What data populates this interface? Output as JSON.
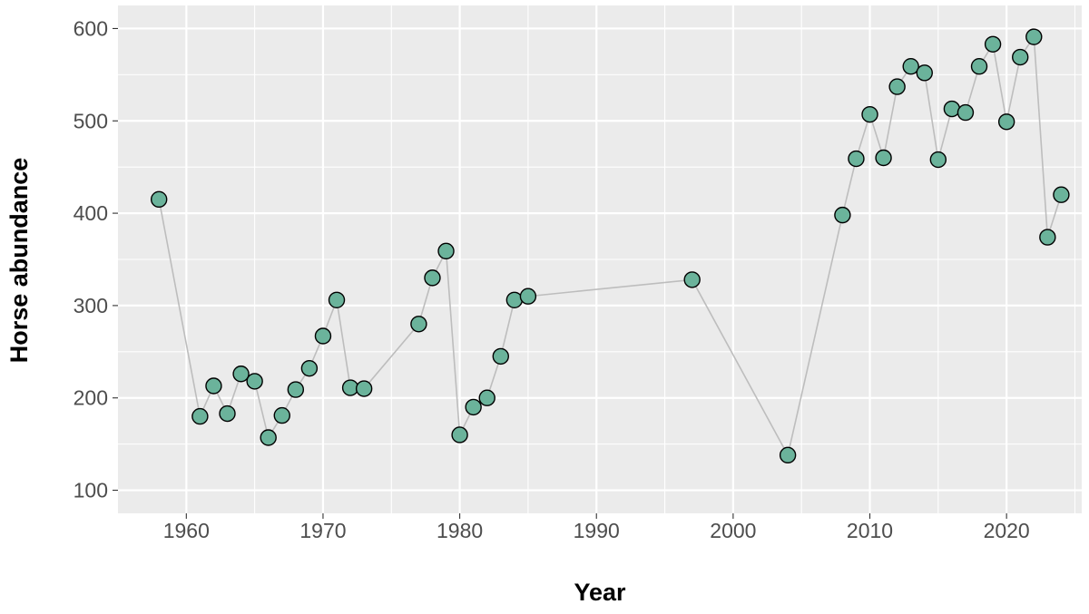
{
  "chart_data": {
    "type": "scatter",
    "xlabel": "Year",
    "ylabel": "Horse abundance",
    "xlim": [
      1955,
      2025.5
    ],
    "ylim": [
      75,
      625
    ],
    "x_ticks": [
      1960,
      1970,
      1980,
      1990,
      2000,
      2010,
      2020
    ],
    "y_ticks": [
      100,
      200,
      300,
      400,
      500,
      600
    ],
    "grid": true,
    "connect_points": true,
    "colors": {
      "point_fill": "#6BB39B",
      "point_stroke": "#000000",
      "line": "#BDBDBD",
      "panel": "#EBEBEB",
      "grid": "#FFFFFF"
    },
    "series": [
      {
        "x": [
          1958,
          1961,
          1962,
          1963,
          1964,
          1965,
          1966,
          1967,
          1968,
          1969,
          1970,
          1971,
          1972,
          1973,
          1977,
          1978,
          1979,
          1980,
          1981,
          1982,
          1983,
          1984,
          1985,
          1997,
          2004,
          2008,
          2009,
          2010,
          2011,
          2012,
          2013,
          2014,
          2015,
          2016,
          2017,
          2018,
          2019,
          2020,
          2021,
          2022,
          2023,
          2024
        ],
        "y": [
          415,
          180,
          213,
          183,
          226,
          218,
          157,
          181,
          209,
          232,
          267,
          306,
          211,
          210,
          280,
          330,
          359,
          160,
          190,
          200,
          245,
          306,
          310,
          328,
          138,
          398,
          459,
          507,
          460,
          537,
          559,
          552,
          458,
          513,
          509,
          559,
          583,
          499,
          569,
          591,
          374,
          420
        ]
      }
    ]
  }
}
